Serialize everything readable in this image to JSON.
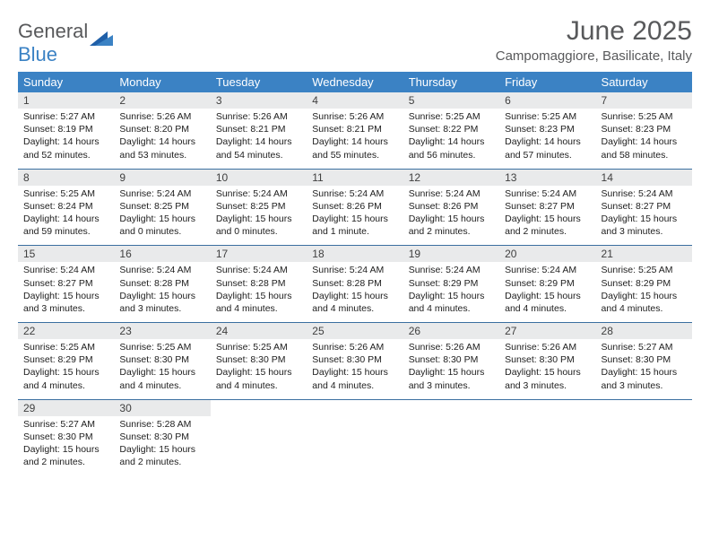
{
  "logo": {
    "word1": "General",
    "word2": "Blue"
  },
  "title": "June 2025",
  "location": "Campomaggiore, Basilicate, Italy",
  "colors": {
    "header_bg": "#3b82c4",
    "header_text": "#ffffff",
    "daynum_bg": "#e9eaeb",
    "text": "#202020",
    "title_text": "#58595b",
    "rule": "#3b6fa0"
  },
  "day_headers": [
    "Sunday",
    "Monday",
    "Tuesday",
    "Wednesday",
    "Thursday",
    "Friday",
    "Saturday"
  ],
  "weeks": [
    [
      {
        "n": "1",
        "sr": "5:27 AM",
        "ss": "8:19 PM",
        "dl": "14 hours and 52 minutes."
      },
      {
        "n": "2",
        "sr": "5:26 AM",
        "ss": "8:20 PM",
        "dl": "14 hours and 53 minutes."
      },
      {
        "n": "3",
        "sr": "5:26 AM",
        "ss": "8:21 PM",
        "dl": "14 hours and 54 minutes."
      },
      {
        "n": "4",
        "sr": "5:26 AM",
        "ss": "8:21 PM",
        "dl": "14 hours and 55 minutes."
      },
      {
        "n": "5",
        "sr": "5:25 AM",
        "ss": "8:22 PM",
        "dl": "14 hours and 56 minutes."
      },
      {
        "n": "6",
        "sr": "5:25 AM",
        "ss": "8:23 PM",
        "dl": "14 hours and 57 minutes."
      },
      {
        "n": "7",
        "sr": "5:25 AM",
        "ss": "8:23 PM",
        "dl": "14 hours and 58 minutes."
      }
    ],
    [
      {
        "n": "8",
        "sr": "5:25 AM",
        "ss": "8:24 PM",
        "dl": "14 hours and 59 minutes."
      },
      {
        "n": "9",
        "sr": "5:24 AM",
        "ss": "8:25 PM",
        "dl": "15 hours and 0 minutes."
      },
      {
        "n": "10",
        "sr": "5:24 AM",
        "ss": "8:25 PM",
        "dl": "15 hours and 0 minutes."
      },
      {
        "n": "11",
        "sr": "5:24 AM",
        "ss": "8:26 PM",
        "dl": "15 hours and 1 minute."
      },
      {
        "n": "12",
        "sr": "5:24 AM",
        "ss": "8:26 PM",
        "dl": "15 hours and 2 minutes."
      },
      {
        "n": "13",
        "sr": "5:24 AM",
        "ss": "8:27 PM",
        "dl": "15 hours and 2 minutes."
      },
      {
        "n": "14",
        "sr": "5:24 AM",
        "ss": "8:27 PM",
        "dl": "15 hours and 3 minutes."
      }
    ],
    [
      {
        "n": "15",
        "sr": "5:24 AM",
        "ss": "8:27 PM",
        "dl": "15 hours and 3 minutes."
      },
      {
        "n": "16",
        "sr": "5:24 AM",
        "ss": "8:28 PM",
        "dl": "15 hours and 3 minutes."
      },
      {
        "n": "17",
        "sr": "5:24 AM",
        "ss": "8:28 PM",
        "dl": "15 hours and 4 minutes."
      },
      {
        "n": "18",
        "sr": "5:24 AM",
        "ss": "8:28 PM",
        "dl": "15 hours and 4 minutes."
      },
      {
        "n": "19",
        "sr": "5:24 AM",
        "ss": "8:29 PM",
        "dl": "15 hours and 4 minutes."
      },
      {
        "n": "20",
        "sr": "5:24 AM",
        "ss": "8:29 PM",
        "dl": "15 hours and 4 minutes."
      },
      {
        "n": "21",
        "sr": "5:25 AM",
        "ss": "8:29 PM",
        "dl": "15 hours and 4 minutes."
      }
    ],
    [
      {
        "n": "22",
        "sr": "5:25 AM",
        "ss": "8:29 PM",
        "dl": "15 hours and 4 minutes."
      },
      {
        "n": "23",
        "sr": "5:25 AM",
        "ss": "8:30 PM",
        "dl": "15 hours and 4 minutes."
      },
      {
        "n": "24",
        "sr": "5:25 AM",
        "ss": "8:30 PM",
        "dl": "15 hours and 4 minutes."
      },
      {
        "n": "25",
        "sr": "5:26 AM",
        "ss": "8:30 PM",
        "dl": "15 hours and 4 minutes."
      },
      {
        "n": "26",
        "sr": "5:26 AM",
        "ss": "8:30 PM",
        "dl": "15 hours and 3 minutes."
      },
      {
        "n": "27",
        "sr": "5:26 AM",
        "ss": "8:30 PM",
        "dl": "15 hours and 3 minutes."
      },
      {
        "n": "28",
        "sr": "5:27 AM",
        "ss": "8:30 PM",
        "dl": "15 hours and 3 minutes."
      }
    ],
    [
      {
        "n": "29",
        "sr": "5:27 AM",
        "ss": "8:30 PM",
        "dl": "15 hours and 2 minutes."
      },
      {
        "n": "30",
        "sr": "5:28 AM",
        "ss": "8:30 PM",
        "dl": "15 hours and 2 minutes."
      },
      null,
      null,
      null,
      null,
      null
    ]
  ],
  "labels": {
    "sunrise": "Sunrise: ",
    "sunset": "Sunset: ",
    "daylight": "Daylight: "
  }
}
